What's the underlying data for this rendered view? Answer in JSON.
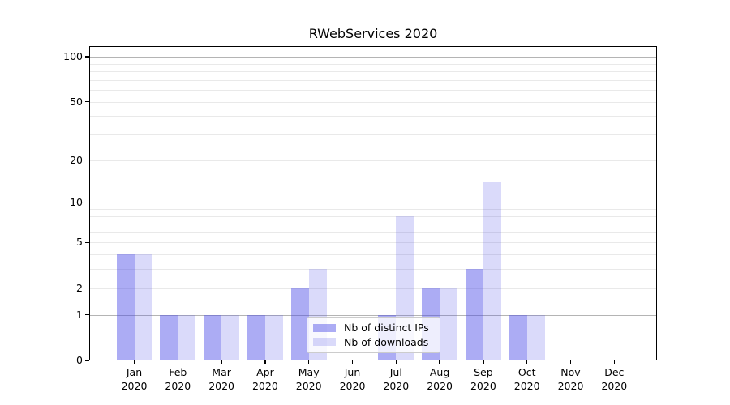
{
  "chart_data": {
    "type": "bar",
    "title": "RWebServices 2020",
    "categories": [
      "Jan",
      "Feb",
      "Mar",
      "Apr",
      "May",
      "Jun",
      "Jul",
      "Aug",
      "Sep",
      "Oct",
      "Nov",
      "Dec"
    ],
    "x_year_label": "2020",
    "series": [
      {
        "name": "Nb of distinct IPs",
        "key": "distinct-ips",
        "color": "rgba(70,70,230,0.45)",
        "values": [
          4,
          1,
          1,
          1,
          2,
          0,
          1,
          2,
          3,
          1,
          0,
          0
        ]
      },
      {
        "name": "Nb of downloads",
        "key": "downloads",
        "color": "rgba(70,70,230,0.20)",
        "values": [
          4,
          1,
          1,
          1,
          3,
          0,
          8,
          2,
          14,
          1,
          0,
          0
        ]
      }
    ],
    "y_axis": {
      "scale": "log1p",
      "tick_labels": [
        0,
        1,
        2,
        5,
        10,
        20,
        50,
        100
      ],
      "gridline_values": [
        1,
        2,
        3,
        4,
        5,
        6,
        7,
        8,
        9,
        10,
        20,
        30,
        40,
        50,
        60,
        70,
        80,
        90,
        100
      ],
      "major_gridline_values": [
        1,
        10,
        100
      ],
      "ylim": [
        0,
        117
      ]
    },
    "legend": {
      "position": "lower center"
    },
    "colors": {
      "bar_dark": "rgba(70,70,230,0.45)",
      "bar_light": "rgba(70,70,230,0.20)",
      "gridline_minor": "#e9e9e9",
      "gridline_major": "#b4b4b4",
      "axis": "#000000"
    },
    "grid": "on"
  }
}
